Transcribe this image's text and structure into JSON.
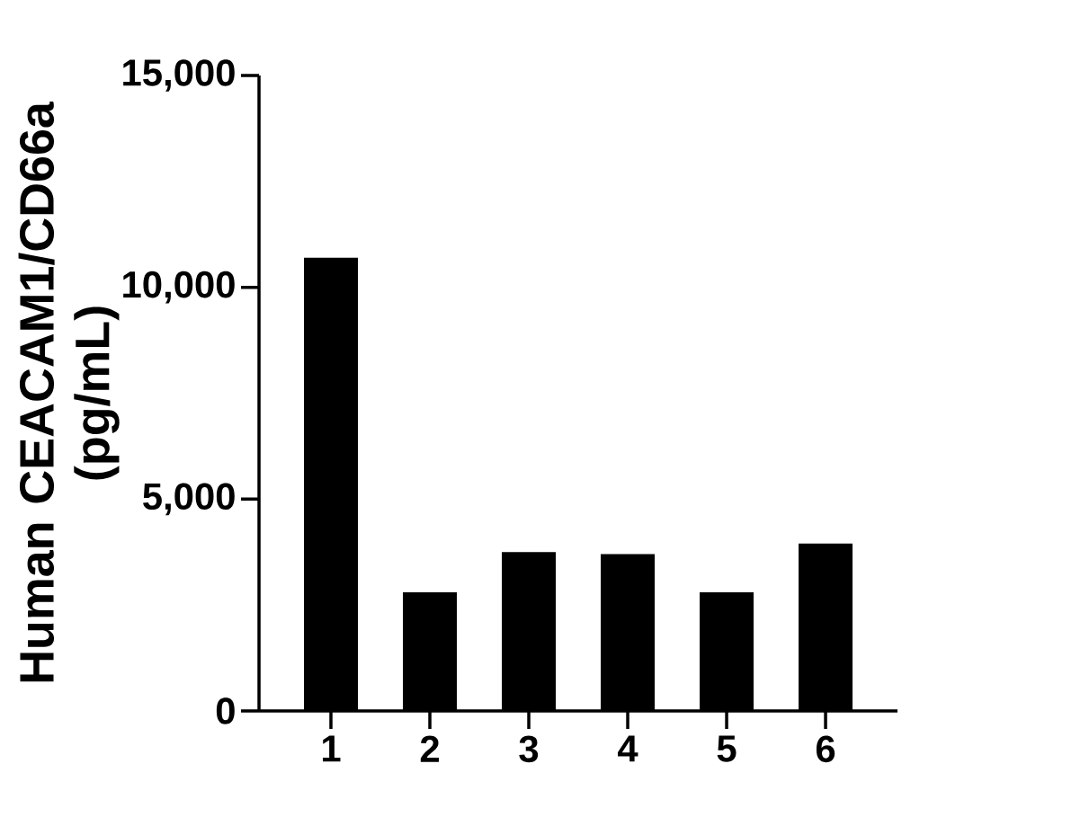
{
  "chart_data": {
    "type": "bar",
    "ylabel": "Human CEACAM1/CD66a (pg/mL)",
    "categories": [
      "1",
      "2",
      "3",
      "4",
      "5",
      "6"
    ],
    "values": [
      10700,
      2800,
      3750,
      3700,
      2800,
      3950
    ],
    "color": "#000000",
    "ylim": [
      0,
      15000
    ],
    "yticks": [
      {
        "value": 0,
        "label": "0"
      },
      {
        "value": 5000,
        "label": "5,000"
      },
      {
        "value": 10000,
        "label": "10,000"
      },
      {
        "value": 15000,
        "label": "15,000"
      }
    ],
    "grid": false
  }
}
